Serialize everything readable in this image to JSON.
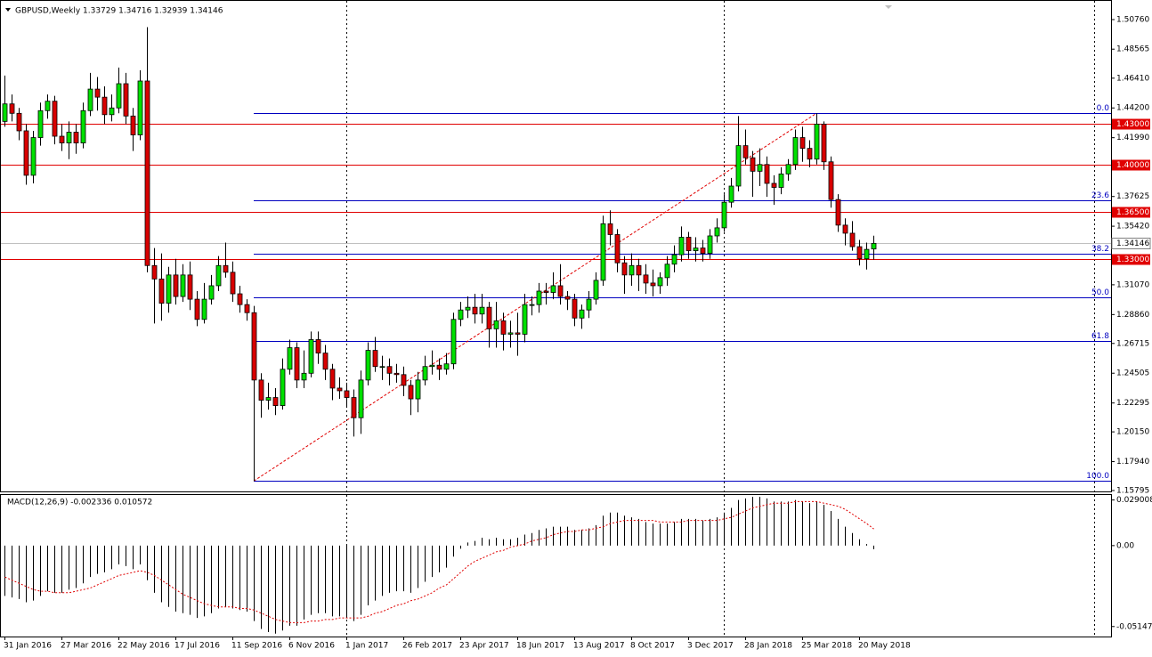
{
  "chart_data": [
    {
      "type": "candlestick",
      "title": "GBPUSD,Weekly 1.33729 1.34716 1.32939 1.34146",
      "categories": [
        "31 Jan 2016",
        null,
        null,
        null,
        null,
        null,
        null,
        null,
        "27 Mar 2016",
        null,
        null,
        null,
        null,
        null,
        null,
        null,
        "22 May 2016",
        null,
        null,
        null,
        null,
        null,
        null,
        null,
        "17 Jul 2016",
        null,
        null,
        null,
        null,
        null,
        null,
        null,
        "11 Sep 2016",
        null,
        null,
        null,
        null,
        null,
        null,
        null,
        "6 Nov 2016",
        null,
        null,
        null,
        null,
        null,
        null,
        null,
        "1 Jan 2017",
        null,
        null,
        null,
        null,
        null,
        null,
        null,
        "26 Feb 2017",
        null,
        null,
        null,
        null,
        null,
        null,
        null,
        "23 Apr 2017",
        null,
        null,
        null,
        null,
        null,
        null,
        null,
        "18 Jun 2017",
        null,
        null,
        null,
        null,
        null,
        null,
        null,
        "13 Aug 2017",
        null,
        null,
        null,
        null,
        null,
        null,
        null,
        "8 Oct 2017",
        null,
        null,
        null,
        null,
        null,
        null,
        null,
        "3 Dec 2017",
        null,
        null,
        null,
        null,
        null,
        null,
        null,
        "28 Jan 2018",
        null,
        null,
        null,
        null,
        null,
        null,
        null,
        "25 Mar 2018",
        null,
        null,
        null,
        null,
        null,
        null,
        null,
        "20 May 2018",
        null,
        null
      ],
      "open": [
        1.432,
        1.445,
        1.438,
        1.425,
        1.392,
        1.42,
        1.44,
        1.447,
        1.421,
        1.416,
        1.424,
        1.416,
        1.44,
        1.456,
        1.45,
        1.437,
        1.442,
        1.46,
        1.436,
        1.422,
        1.462,
        1.325,
        1.315,
        1.297,
        1.318,
        1.302,
        1.318,
        1.3,
        1.285,
        1.3,
        1.31,
        1.325,
        1.32,
        1.304,
        1.296,
        1.29,
        1.24,
        1.225,
        1.227,
        1.221,
        1.248,
        1.264,
        1.24,
        1.245,
        1.27,
        1.26,
        1.248,
        1.234,
        1.232,
        1.227,
        1.212,
        1.24,
        1.262,
        1.25,
        1.25,
        1.245,
        1.244,
        1.236,
        1.226,
        1.24,
        1.25,
        1.251,
        1.248,
        1.252,
        1.285,
        1.292,
        1.294,
        1.289,
        1.294,
        1.278,
        1.284,
        1.274,
        1.275,
        1.274,
        1.296,
        1.296,
        1.306,
        1.305,
        1.31,
        1.302,
        1.3,
        1.286,
        1.292,
        1.3,
        1.314,
        1.356,
        1.348,
        1.327,
        1.318,
        1.325,
        1.318,
        1.312,
        1.31,
        1.316,
        1.326,
        1.333,
        1.346,
        1.336,
        1.338,
        1.334,
        1.347,
        1.353,
        1.372,
        1.384,
        1.414,
        1.405,
        1.395,
        1.4,
        1.386,
        1.383,
        1.393,
        1.4,
        1.42,
        1.412,
        1.404,
        1.43,
        1.402,
        1.374,
        1.355,
        1.349,
        1.339,
        1.33,
        1.33729
      ],
      "high": [
        1.466,
        1.452,
        1.442,
        1.43,
        1.425,
        1.446,
        1.452,
        1.451,
        1.43,
        1.432,
        1.43,
        1.446,
        1.468,
        1.465,
        1.458,
        1.452,
        1.472,
        1.468,
        1.442,
        1.47,
        1.502,
        1.338,
        1.334,
        1.324,
        1.33,
        1.326,
        1.328,
        1.306,
        1.312,
        1.318,
        1.332,
        1.342,
        1.328,
        1.31,
        1.3,
        1.295,
        1.245,
        1.238,
        1.234,
        1.256,
        1.27,
        1.268,
        1.262,
        1.276,
        1.276,
        1.266,
        1.252,
        1.242,
        1.238,
        1.233,
        1.247,
        1.268,
        1.272,
        1.258,
        1.256,
        1.252,
        1.25,
        1.24,
        1.246,
        1.258,
        1.262,
        1.256,
        1.26,
        1.29,
        1.298,
        1.302,
        1.304,
        1.304,
        1.298,
        1.298,
        1.29,
        1.284,
        1.29,
        1.304,
        1.302,
        1.312,
        1.312,
        1.32,
        1.326,
        1.306,
        1.304,
        1.296,
        1.306,
        1.32,
        1.362,
        1.366,
        1.352,
        1.332,
        1.334,
        1.33,
        1.326,
        1.322,
        1.32,
        1.332,
        1.34,
        1.354,
        1.35,
        1.346,
        1.344,
        1.352,
        1.36,
        1.378,
        1.39,
        1.436,
        1.426,
        1.41,
        1.412,
        1.406,
        1.392,
        1.398,
        1.404,
        1.426,
        1.428,
        1.418,
        1.438,
        1.432,
        1.406,
        1.378,
        1.36,
        1.358,
        1.344,
        1.342,
        1.34716
      ],
      "low": [
        1.428,
        1.432,
        1.418,
        1.385,
        1.386,
        1.414,
        1.434,
        1.415,
        1.41,
        1.404,
        1.408,
        1.412,
        1.436,
        1.44,
        1.43,
        1.432,
        1.438,
        1.43,
        1.41,
        1.418,
        1.32,
        1.282,
        1.284,
        1.29,
        1.296,
        1.298,
        1.292,
        1.28,
        1.282,
        1.296,
        1.306,
        1.316,
        1.298,
        1.29,
        1.284,
        1.165,
        1.212,
        1.218,
        1.214,
        1.218,
        1.244,
        1.234,
        1.234,
        1.242,
        1.252,
        1.24,
        1.225,
        1.226,
        1.22,
        1.198,
        1.2,
        1.236,
        1.246,
        1.24,
        1.236,
        1.238,
        1.228,
        1.214,
        1.216,
        1.236,
        1.244,
        1.24,
        1.244,
        1.248,
        1.28,
        1.286,
        1.282,
        1.282,
        1.264,
        1.264,
        1.262,
        1.264,
        1.258,
        1.268,
        1.288,
        1.29,
        1.296,
        1.3,
        1.296,
        1.292,
        1.28,
        1.278,
        1.286,
        1.296,
        1.31,
        1.34,
        1.32,
        1.304,
        1.31,
        1.306,
        1.304,
        1.302,
        1.304,
        1.31,
        1.32,
        1.328,
        1.33,
        1.328,
        1.328,
        1.33,
        1.342,
        1.35,
        1.368,
        1.38,
        1.4,
        1.376,
        1.384,
        1.376,
        1.37,
        1.378,
        1.388,
        1.396,
        1.402,
        1.398,
        1.4,
        1.396,
        1.368,
        1.35,
        1.34,
        1.336,
        1.325,
        1.322,
        1.32939
      ],
      "close": [
        1.445,
        1.438,
        1.425,
        1.392,
        1.42,
        1.44,
        1.447,
        1.421,
        1.416,
        1.424,
        1.416,
        1.44,
        1.456,
        1.45,
        1.437,
        1.442,
        1.46,
        1.436,
        1.422,
        1.462,
        1.325,
        1.315,
        1.297,
        1.318,
        1.302,
        1.318,
        1.3,
        1.285,
        1.3,
        1.31,
        1.325,
        1.32,
        1.304,
        1.296,
        1.29,
        1.24,
        1.225,
        1.227,
        1.221,
        1.248,
        1.264,
        1.24,
        1.245,
        1.27,
        1.26,
        1.248,
        1.234,
        1.232,
        1.227,
        1.212,
        1.24,
        1.262,
        1.25,
        1.25,
        1.245,
        1.244,
        1.236,
        1.226,
        1.24,
        1.25,
        1.251,
        1.248,
        1.252,
        1.285,
        1.292,
        1.294,
        1.289,
        1.294,
        1.278,
        1.284,
        1.274,
        1.275,
        1.274,
        1.296,
        1.296,
        1.306,
        1.305,
        1.31,
        1.302,
        1.3,
        1.286,
        1.292,
        1.3,
        1.314,
        1.356,
        1.348,
        1.327,
        1.318,
        1.325,
        1.318,
        1.312,
        1.31,
        1.316,
        1.326,
        1.333,
        1.346,
        1.336,
        1.338,
        1.334,
        1.347,
        1.353,
        1.372,
        1.384,
        1.414,
        1.405,
        1.395,
        1.4,
        1.386,
        1.383,
        1.393,
        1.4,
        1.42,
        1.412,
        1.404,
        1.43,
        1.402,
        1.374,
        1.355,
        1.349,
        1.339,
        1.33,
        1.337,
        1.34146
      ],
      "up_color": "#00e000",
      "down_color": "#d80000",
      "ylim": [
        1.15729,
        1.52214
      ],
      "yticks": [
        {
          "value": 1.5076,
          "label": "1.50760"
        },
        {
          "value": 1.48565,
          "label": "1.48565"
        },
        {
          "value": 1.4641,
          "label": "1.46410"
        },
        {
          "value": 1.442,
          "label": "1.44200"
        },
        {
          "value": 1.4199,
          "label": "1.41990"
        },
        {
          "value": 1.37625,
          "label": "1.37625"
        },
        {
          "value": 1.3542,
          "label": "1.35420"
        },
        {
          "value": 1.3107,
          "label": "1.31070"
        },
        {
          "value": 1.2886,
          "label": "1.28860"
        },
        {
          "value": 1.26715,
          "label": "1.26715"
        },
        {
          "value": 1.24505,
          "label": "1.24505"
        },
        {
          "value": 1.22295,
          "label": "1.22295"
        },
        {
          "value": 1.2015,
          "label": "1.20150"
        },
        {
          "value": 1.1794,
          "label": "1.17940"
        },
        {
          "value": 1.15795,
          "label": "1.15795"
        }
      ],
      "levels": [
        {
          "value": 1.43,
          "label": "1.43000"
        },
        {
          "value": 1.4,
          "label": "1.40000"
        },
        {
          "value": 1.365,
          "label": "1.36500"
        },
        {
          "value": 1.33,
          "label": "1.33000"
        }
      ],
      "level_color": "#e00000",
      "last_price": 1.34146,
      "fib_levels": [
        {
          "value": 1.438,
          "label": "0.0"
        },
        {
          "value": 1.3736,
          "label": "23.6"
        },
        {
          "value": 1.3337,
          "label": "38.2"
        },
        {
          "value": 1.3015,
          "label": "50.0"
        },
        {
          "value": 1.2693,
          "label": "61.8"
        },
        {
          "value": 1.165,
          "label": "100.0"
        }
      ],
      "fib_color": "#0000c0"
    },
    {
      "type": "macd",
      "title": "MACD(12,26,9) -0.002336 0.010572",
      "histogram": [
        -0.032,
        -0.033,
        -0.034,
        -0.036,
        -0.035,
        -0.032,
        -0.029,
        -0.03,
        -0.03,
        -0.028,
        -0.027,
        -0.024,
        -0.02,
        -0.018,
        -0.017,
        -0.015,
        -0.012,
        -0.013,
        -0.015,
        -0.012,
        -0.022,
        -0.03,
        -0.036,
        -0.039,
        -0.042,
        -0.043,
        -0.044,
        -0.046,
        -0.045,
        -0.043,
        -0.04,
        -0.039,
        -0.04,
        -0.041,
        -0.042,
        -0.048,
        -0.053,
        -0.055,
        -0.056,
        -0.054,
        -0.051,
        -0.051,
        -0.047,
        -0.044,
        -0.043,
        -0.043,
        -0.045,
        -0.045,
        -0.046,
        -0.048,
        -0.044,
        -0.038,
        -0.035,
        -0.032,
        -0.03,
        -0.029,
        -0.029,
        -0.03,
        -0.027,
        -0.023,
        -0.02,
        -0.017,
        -0.014,
        -0.007,
        -0.002,
        0.002,
        0.003,
        0.005,
        0.004,
        0.005,
        0.004,
        0.004,
        0.005,
        0.007,
        0.008,
        0.01,
        0.011,
        0.012,
        0.012,
        0.012,
        0.01,
        0.01,
        0.011,
        0.013,
        0.019,
        0.021,
        0.021,
        0.019,
        0.018,
        0.017,
        0.015,
        0.014,
        0.014,
        0.014,
        0.015,
        0.017,
        0.017,
        0.017,
        0.016,
        0.017,
        0.018,
        0.021,
        0.024,
        0.029,
        0.03,
        0.031,
        0.031,
        0.03,
        0.028,
        0.028,
        0.028,
        0.029,
        0.028,
        0.027,
        0.028,
        0.026,
        0.022,
        0.017,
        0.012,
        0.008,
        0.004,
        0.001,
        -0.002336
      ],
      "signal": [
        -0.02,
        -0.022,
        -0.024,
        -0.026,
        -0.028,
        -0.029,
        -0.029,
        -0.03,
        -0.03,
        -0.03,
        -0.029,
        -0.028,
        -0.027,
        -0.025,
        -0.023,
        -0.021,
        -0.019,
        -0.018,
        -0.017,
        -0.016,
        -0.017,
        -0.019,
        -0.022,
        -0.025,
        -0.028,
        -0.031,
        -0.033,
        -0.035,
        -0.037,
        -0.038,
        -0.039,
        -0.039,
        -0.039,
        -0.04,
        -0.04,
        -0.041,
        -0.043,
        -0.045,
        -0.047,
        -0.048,
        -0.049,
        -0.049,
        -0.049,
        -0.048,
        -0.048,
        -0.047,
        -0.047,
        -0.046,
        -0.046,
        -0.046,
        -0.046,
        -0.045,
        -0.043,
        -0.042,
        -0.04,
        -0.038,
        -0.037,
        -0.035,
        -0.034,
        -0.032,
        -0.03,
        -0.027,
        -0.025,
        -0.021,
        -0.017,
        -0.013,
        -0.01,
        -0.008,
        -0.006,
        -0.004,
        -0.003,
        -0.001,
        0.0,
        0.001,
        0.003,
        0.004,
        0.005,
        0.007,
        0.008,
        0.009,
        0.009,
        0.01,
        0.01,
        0.011,
        0.012,
        0.014,
        0.015,
        0.016,
        0.016,
        0.016,
        0.016,
        0.016,
        0.015,
        0.015,
        0.015,
        0.015,
        0.016,
        0.016,
        0.016,
        0.016,
        0.016,
        0.017,
        0.018,
        0.02,
        0.022,
        0.024,
        0.025,
        0.026,
        0.027,
        0.027,
        0.027,
        0.028,
        0.028,
        0.028,
        0.028,
        0.027,
        0.026,
        0.025,
        0.023,
        0.02,
        0.017,
        0.014,
        0.010572
      ],
      "signal_color": "#e00000",
      "ylim": [
        -0.0584,
        0.0322
      ],
      "yticks": [
        0.029008,
        {
          "value": 0,
          "label": "0.00"
        },
        -0.051476
      ]
    }
  ]
}
